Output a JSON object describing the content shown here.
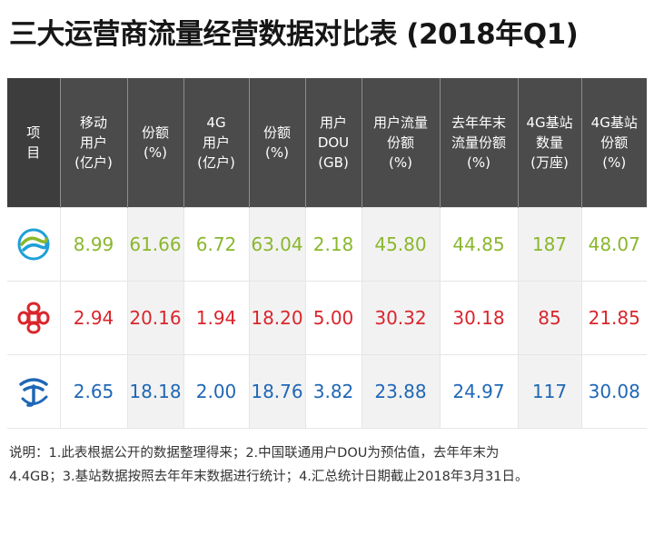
{
  "title": "三大运营商流量经营数据对比表 (2018年Q1)",
  "colors": {
    "header_bg": "#4b4b4b",
    "header_bg_dark": "#3d3d3d",
    "shade_bg": "#f2f2f2",
    "cmcc": "#8ab72d",
    "cucc": "#d9262c",
    "ctc": "#1f67b6"
  },
  "chart_data": {
    "type": "table",
    "title": "三大运营商流量经营数据对比表 (2018年Q1)",
    "columns": [
      {
        "lines": [
          "项",
          "目"
        ]
      },
      {
        "lines": [
          "移动",
          "用户",
          "(亿户)"
        ]
      },
      {
        "lines": [
          "份额",
          "(%)"
        ]
      },
      {
        "lines": [
          "4G",
          "用户",
          "(亿户)"
        ]
      },
      {
        "lines": [
          "份额",
          "(%)"
        ]
      },
      {
        "lines": [
          "用户",
          "DOU",
          "(GB)"
        ]
      },
      {
        "lines": [
          "用户流量",
          "份额",
          "(%)"
        ]
      },
      {
        "lines": [
          "去年年末",
          "流量份额",
          "(%)"
        ]
      },
      {
        "lines": [
          "4G基站",
          "数量",
          "(万座)"
        ]
      },
      {
        "lines": [
          "4G基站",
          "份额",
          "(%)"
        ]
      }
    ],
    "rows": [
      {
        "operator_logo": "china-mobile-logo",
        "color": "#8ab72d",
        "values": [
          "8.99",
          "61.66",
          "6.72",
          "63.04",
          "2.18",
          "45.80",
          "44.85",
          "187",
          "48.07"
        ]
      },
      {
        "operator_logo": "china-unicom-logo",
        "color": "#d9262c",
        "values": [
          "2.94",
          "20.16",
          "1.94",
          "18.20",
          "5.00",
          "30.32",
          "30.18",
          "85",
          "21.85"
        ]
      },
      {
        "operator_logo": "china-telecom-logo",
        "color": "#1f67b6",
        "values": [
          "2.65",
          "18.18",
          "2.00",
          "18.76",
          "3.82",
          "23.88",
          "24.97",
          "117",
          "30.08"
        ]
      }
    ],
    "shaded_columns": [
      2,
      4,
      6,
      8
    ]
  },
  "note": {
    "line1": "说明：1.此表根据公开的数据整理得来；2.中国联通用户DOU为预估值，去年年末为",
    "line2": "4.4GB；3.基站数据按照去年年末数据进行统计；4.汇总统计日期截止2018年3月31日。"
  }
}
